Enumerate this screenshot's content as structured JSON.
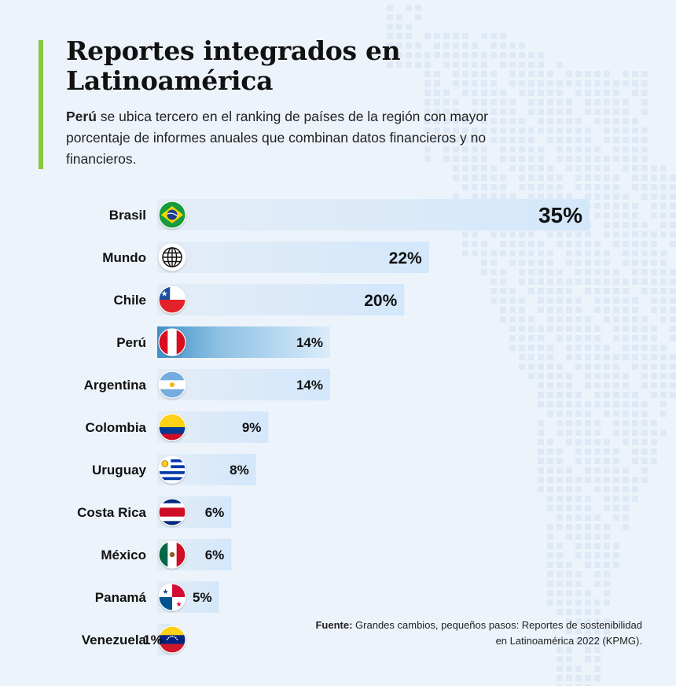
{
  "header": {
    "title": "Reportes integrados en Latinoamérica",
    "subtitle_bold": "Perú",
    "subtitle_rest": " se ubica tercero en el ranking de países de la región con mayor porcentaje de informes anuales que combinan datos financieros y no financieros."
  },
  "source": {
    "label": "Fuente:",
    "text": " Grandes cambios, pequeños pasos: Reportes de sostenibilidad en Latinoamérica 2022 (KPMG)."
  },
  "colors": {
    "background": "#edf3fb",
    "accent": "#8dc63f",
    "bar_light": "#d3e7fb",
    "bar_highlight": "#3f8fc6"
  },
  "chart_data": {
    "type": "bar",
    "orientation": "horizontal",
    "categories": [
      "Brasil",
      "Mundo",
      "Chile",
      "Perú",
      "Argentina",
      "Colombia",
      "Uruguay",
      "Costa Rica",
      "México",
      "Panamá",
      "Venezuela"
    ],
    "values": [
      35,
      22,
      20,
      14,
      14,
      9,
      8,
      6,
      6,
      5,
      1
    ],
    "labels": [
      "35%",
      "22%",
      "20%",
      "14%",
      "14%",
      "9%",
      "8%",
      "6%",
      "6%",
      "5%",
      "1%"
    ],
    "icons": [
      "flag-brazil",
      "globe",
      "flag-chile",
      "flag-peru",
      "flag-argentina",
      "flag-colombia",
      "flag-uruguay",
      "flag-costa-rica",
      "flag-mexico",
      "flag-panama",
      "flag-venezuela"
    ],
    "highlight": "Perú",
    "unit": "%",
    "xlim": [
      0,
      35
    ],
    "grid": false,
    "legend": "none"
  }
}
